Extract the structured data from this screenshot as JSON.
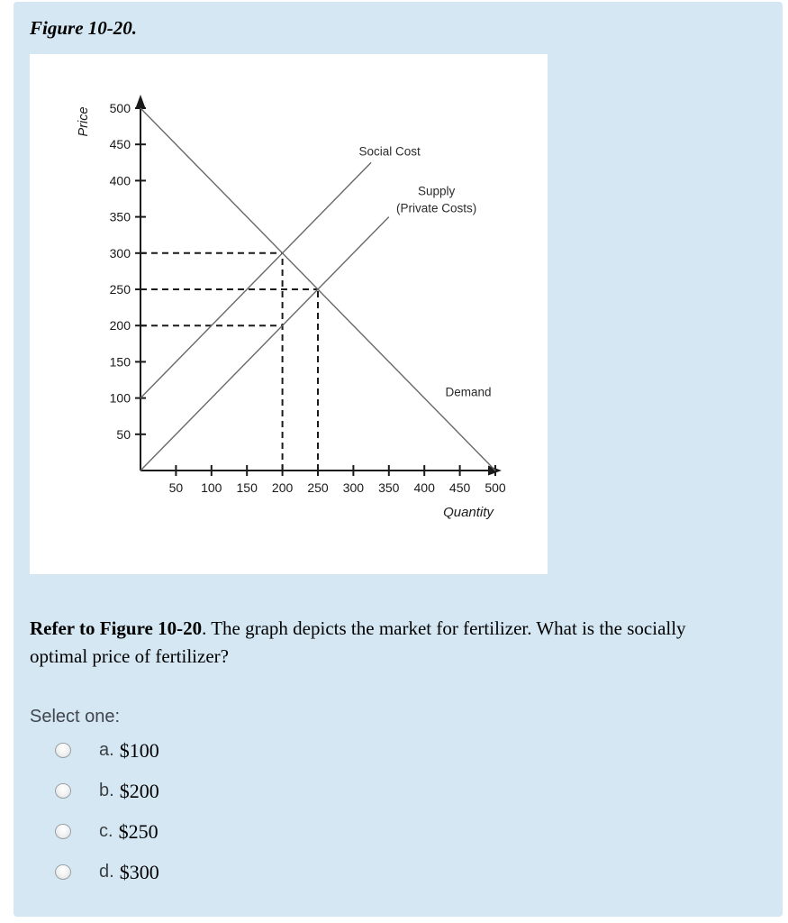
{
  "figure": {
    "heading": "Figure 10-20."
  },
  "question": {
    "bold_prefix": "Refer to Figure 10-20",
    "text_after": ". The graph depicts the market for fertilizer. What is the socially optimal price of fertilizer?",
    "prompt": "Select one:"
  },
  "options": [
    {
      "letter": "a.",
      "value": "$100"
    },
    {
      "letter": "b.",
      "value": "$200"
    },
    {
      "letter": "c.",
      "value": "$250"
    },
    {
      "letter": "d.",
      "value": "$300"
    }
  ],
  "colors": {
    "panel_bg": "#d4e7f3",
    "page_bg": "#ffffff",
    "chart_bg": "#ffffff",
    "axis": "#1a1a1a",
    "curve": "#686868",
    "dashed": "#1a1a1a",
    "chart_text": "#2b2b2b"
  },
  "chart_data": {
    "type": "line",
    "title": "",
    "xlabel": "Quantity",
    "ylabel": "Price",
    "xlim": [
      0,
      500
    ],
    "ylim": [
      0,
      500
    ],
    "x_ticks": [
      50,
      100,
      150,
      200,
      250,
      300,
      350,
      400,
      450,
      500
    ],
    "y_ticks": [
      50,
      100,
      150,
      200,
      250,
      300,
      350,
      400,
      450,
      500
    ],
    "grid": false,
    "legend_position": "inline-labels",
    "series": [
      {
        "name": "Demand",
        "points": [
          [
            0,
            500
          ],
          [
            500,
            0
          ]
        ],
        "label_lines": [
          "Demand"
        ],
        "label_at": [
          462,
          109
        ]
      },
      {
        "name": "Social Cost",
        "points": [
          [
            0,
            100
          ],
          [
            325,
            425
          ]
        ],
        "label_lines": [
          "Social Cost"
        ],
        "label_at": [
          351,
          441
        ]
      },
      {
        "name": "Supply (Private Costs)",
        "points": [
          [
            0,
            0
          ],
          [
            350,
            350
          ]
        ],
        "label_lines": [
          "Supply",
          "(Private Costs)"
        ],
        "label_at": [
          417,
          386
        ]
      }
    ],
    "dashed_guides": [
      {
        "from": [
          0,
          300
        ],
        "to": [
          200,
          300
        ]
      },
      {
        "from": [
          0,
          250
        ],
        "to": [
          250,
          250
        ]
      },
      {
        "from": [
          0,
          200
        ],
        "to": [
          200,
          200
        ]
      },
      {
        "from": [
          200,
          0
        ],
        "to": [
          200,
          300
        ]
      },
      {
        "from": [
          250,
          0
        ],
        "to": [
          250,
          250
        ]
      }
    ],
    "key_points": [
      {
        "name": "social-optimum (Social Cost = Demand)",
        "quantity": 200,
        "price": 300
      },
      {
        "name": "market-equilibrium (Supply = Demand)",
        "quantity": 250,
        "price": 250
      },
      {
        "name": "private-cost-at-Q200",
        "quantity": 200,
        "price": 200
      }
    ]
  }
}
